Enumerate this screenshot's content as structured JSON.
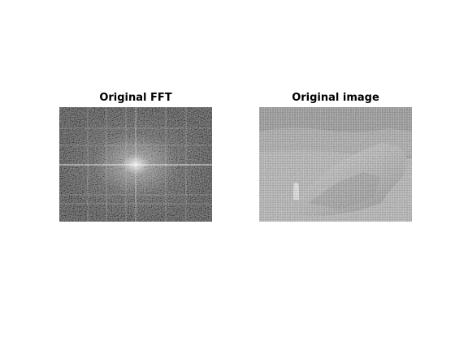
{
  "figure": {
    "subplots": [
      {
        "title": "Original FFT",
        "content": "fft-magnitude-spectrum"
      },
      {
        "title": "Original image",
        "content": "grayscale-photo-rock-landscape"
      }
    ]
  },
  "colors": {
    "background": "#ffffff",
    "fft_base": "#4a4a4a",
    "image_sky": "#8c8c8c",
    "image_ground": "#b0b0b0"
  }
}
